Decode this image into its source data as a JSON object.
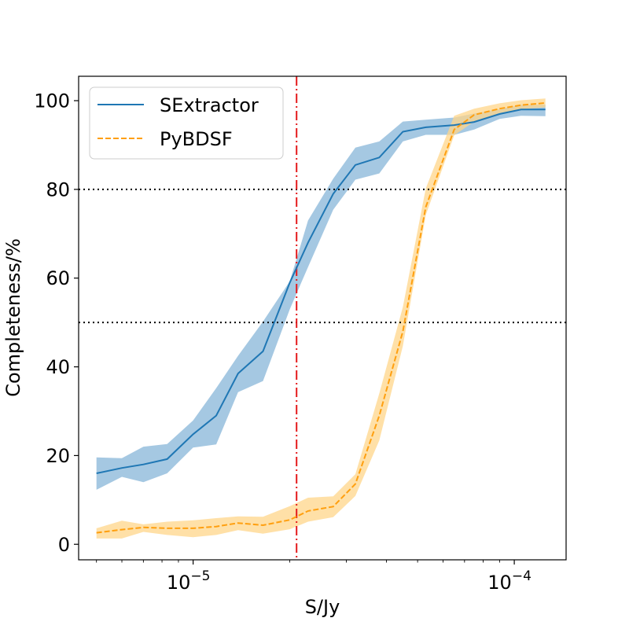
{
  "chart_data": {
    "type": "line",
    "title": "",
    "xlabel": "S/Jy",
    "ylabel": "Completeness/%",
    "xscale": "log",
    "xlim": [
      4.4e-06,
      0.000145
    ],
    "ylim": [
      -3.5,
      105.5
    ],
    "x_ticks": [
      {
        "value": 1e-05,
        "base": "10",
        "exp": "−5"
      },
      {
        "value": 0.0001,
        "base": "10",
        "exp": "−4"
      }
    ],
    "y_ticks": [
      0,
      20,
      40,
      60,
      80,
      100
    ],
    "reference_lines": {
      "horizontal": [
        80,
        50
      ],
      "horizontal_style": "dotted",
      "vertical": [
        2.1e-05
      ],
      "vertical_style": "dash-dot",
      "vertical_color": "#e41a1c"
    },
    "legend": {
      "position": "top-left"
    },
    "series": [
      {
        "name": "SExtractor",
        "color": "#1f77b4",
        "band_color": "#7fb0d6",
        "linestyle": "solid",
        "x": [
          5e-06,
          6e-06,
          7e-06,
          8.3e-06,
          1e-05,
          1.18e-05,
          1.38e-05,
          1.65e-05,
          2e-05,
          2.28e-05,
          2.73e-05,
          3.2e-05,
          3.8e-05,
          4.5e-05,
          5.3e-05,
          6.5e-05,
          7.5e-05,
          9e-05,
          0.000105,
          0.000125
        ],
        "values": [
          16,
          17.2,
          18,
          19.2,
          24.8,
          29,
          38.5,
          43.5,
          59,
          68,
          79,
          85.5,
          87.2,
          93,
          94,
          94.5,
          95.2,
          97,
          98,
          98
        ],
        "lower": [
          12.3,
          15.2,
          14,
          16,
          21.8,
          22.5,
          34.3,
          36.8,
          53,
          62.5,
          75.4,
          82.2,
          83.6,
          90.8,
          92.3,
          92.3,
          93.5,
          95.9,
          96.6,
          96.5
        ],
        "upper": [
          19.6,
          19.4,
          22,
          22.6,
          27.9,
          35.2,
          42.5,
          50.2,
          59.3,
          73,
          82.4,
          89.4,
          90.8,
          95.3,
          95.7,
          96.2,
          97.1,
          98.1,
          99.1,
          99.1
        ]
      },
      {
        "name": "PyBDSF",
        "color": "#ff9f0f",
        "band_color": "#ffd58a",
        "linestyle": "dashed",
        "x": [
          5e-06,
          6e-06,
          7e-06,
          8.3e-06,
          1e-05,
          1.18e-05,
          1.38e-05,
          1.65e-05,
          2e-05,
          2.28e-05,
          2.73e-05,
          3.2e-05,
          3.8e-05,
          4.5e-05,
          5.3e-05,
          6.5e-05,
          7.5e-05,
          9e-05,
          0.000105,
          0.000125
        ],
        "values": [
          2.6,
          3.3,
          3.8,
          3.6,
          3.6,
          4.0,
          4.8,
          4.3,
          5.5,
          7.5,
          8.5,
          13.6,
          29,
          48,
          76,
          93.5,
          96.8,
          98.2,
          99,
          99.5
        ],
        "lower": [
          1.3,
          1.3,
          2.8,
          2.1,
          1.6,
          2.1,
          3.2,
          2.4,
          3.4,
          5.1,
          6.1,
          10.9,
          23.4,
          44.7,
          74.2,
          92.2,
          95.3,
          97.2,
          98.1,
          98.5
        ],
        "upper": [
          3.6,
          5.3,
          4.5,
          5.1,
          5.4,
          5.9,
          6.3,
          6.2,
          8.6,
          10.5,
          10.8,
          15.8,
          34,
          53.5,
          80.2,
          96.6,
          98.2,
          99.4,
          100.1,
          100.5
        ]
      }
    ]
  }
}
